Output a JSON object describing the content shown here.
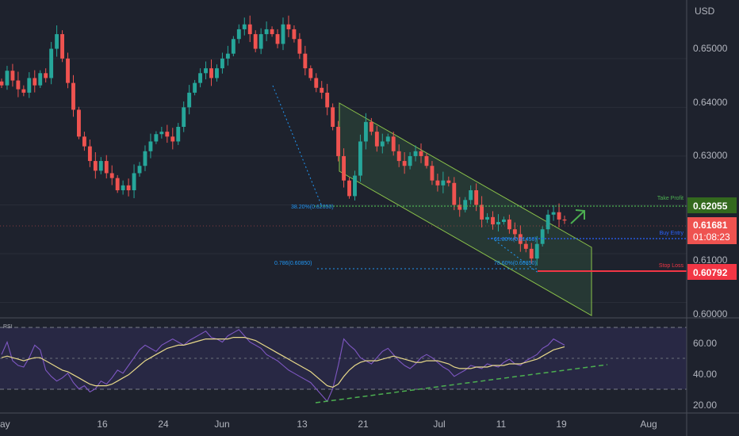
{
  "colors": {
    "background": "#1e222d",
    "grid": "#2a2e39",
    "up": "#26a69a",
    "down": "#ef5350",
    "take_profit": "#4caf50",
    "take_profit_badge": "#33691e",
    "buy_entry": "#2962ff",
    "stop_loss": "#f23645",
    "current_price_badge": "#ef5350",
    "rsi_line": "#7e57c2",
    "rsi_ma": "#e8d98a",
    "rsi_band": "#2a2a4a",
    "channel_fill": "#2d4a3a",
    "channel_line": "#8bc34a",
    "fib": "#2196f3",
    "trendline": "#4caf50"
  },
  "price_axis": {
    "currency": "USD",
    "ticks": [
      "0.65000",
      "0.64000",
      "0.63000",
      "0.61000",
      "0.60000"
    ]
  },
  "rsi_axis": {
    "title": "RSI",
    "ticks": [
      "60.00",
      "40.00",
      "20.00"
    ]
  },
  "time_axis": {
    "labels": [
      "ay",
      "16",
      "24",
      "Jun",
      "13",
      "21",
      "Jul",
      "11",
      "19",
      "Aug"
    ]
  },
  "levels": {
    "take_profit": {
      "label": "Take Profit",
      "price": "0.62055"
    },
    "current": {
      "price": "0.61681",
      "countdown": "01:08:23"
    },
    "buy_entry": {
      "label": "Buy Entry"
    },
    "stop_loss": {
      "label": "Stop Loss",
      "price": "0.60792"
    }
  },
  "fib_labels": {
    "fib_382": "38.20%(0.62050)",
    "fib_786": "0.786(0.60850)",
    "buy_fib": "61.80%(0.61450)",
    "stop_fib": "78.60%(0.60850)"
  },
  "chart_data": [
    {
      "type": "candlestick",
      "title": "",
      "ylabel": "USD",
      "ylim": [
        0.597,
        0.662
      ],
      "x_tick_labels": [
        "ay",
        "16",
        "24",
        "Jun",
        "13",
        "21",
        "Jul",
        "11",
        "19",
        "Aug"
      ],
      "close": [
        0.6445,
        0.6475,
        0.6455,
        0.6437,
        0.643,
        0.646,
        0.6445,
        0.647,
        0.646,
        0.652,
        0.655,
        0.65,
        0.645,
        0.6395,
        0.634,
        0.632,
        0.629,
        0.627,
        0.629,
        0.6265,
        0.6255,
        0.623,
        0.624,
        0.623,
        0.6265,
        0.628,
        0.631,
        0.633,
        0.6345,
        0.635,
        0.634,
        0.633,
        0.636,
        0.64,
        0.643,
        0.645,
        0.647,
        0.648,
        0.646,
        0.648,
        0.65,
        0.651,
        0.654,
        0.656,
        0.657,
        0.655,
        0.652,
        0.655,
        0.656,
        0.655,
        0.653,
        0.657,
        0.656,
        0.654,
        0.651,
        0.648,
        0.646,
        0.644,
        0.643,
        0.64,
        0.636,
        0.63,
        0.625,
        0.6218,
        0.626,
        0.633,
        0.637,
        0.635,
        0.632,
        0.633,
        0.634,
        0.631,
        0.629,
        0.628,
        0.63,
        0.631,
        0.63,
        0.628,
        0.625,
        0.624,
        0.625,
        0.6245,
        0.62,
        0.619,
        0.621,
        0.623,
        0.62,
        0.617,
        0.6175,
        0.616,
        0.6165,
        0.617,
        0.615,
        0.614,
        0.612,
        0.611,
        0.609,
        0.612,
        0.615,
        0.618,
        0.6185,
        0.617,
        0.6168
      ]
    },
    {
      "type": "line",
      "title": "RSI",
      "ylim": [
        15,
        75
      ],
      "series": [
        {
          "values": [
            52,
            60,
            48,
            45,
            44,
            50,
            58,
            55,
            42,
            38,
            35,
            37,
            40,
            34,
            30,
            32,
            28,
            30,
            35,
            33,
            37,
            42,
            40,
            45,
            50,
            55,
            58,
            56,
            54,
            58,
            60,
            62,
            60,
            58,
            61,
            63,
            65,
            67,
            63,
            62,
            60,
            64,
            66,
            68,
            64,
            60,
            58,
            56,
            52,
            50,
            48,
            45,
            42,
            40,
            38,
            36,
            34,
            30,
            26,
            22,
            30,
            45,
            62,
            58,
            55,
            50,
            48,
            46,
            50,
            54,
            56,
            52,
            48,
            45,
            43,
            46,
            50,
            52,
            50,
            47,
            44,
            42,
            38,
            40,
            42,
            45,
            44,
            43,
            46,
            45,
            44,
            47,
            49,
            46,
            45,
            48,
            50,
            52,
            56,
            58,
            62,
            60,
            58
          ]
        },
        {
          "values": [
            50,
            51,
            50,
            49,
            48,
            49,
            50,
            50,
            48,
            46,
            44,
            42,
            41,
            39,
            37,
            35,
            33,
            32,
            32,
            32,
            33,
            35,
            37,
            39,
            42,
            45,
            48,
            50,
            52,
            54,
            56,
            57,
            58,
            58,
            59,
            60,
            61,
            62,
            62,
            62,
            62,
            62,
            63,
            63,
            63,
            62,
            61,
            59,
            57,
            55,
            53,
            51,
            49,
            47,
            45,
            43,
            41,
            38,
            35,
            32,
            31,
            33,
            38,
            42,
            45,
            47,
            48,
            48,
            48,
            49,
            50,
            51,
            50,
            49,
            48,
            47,
            47,
            48,
            48,
            48,
            47,
            46,
            44,
            43,
            43,
            43,
            44,
            44,
            44,
            45,
            45,
            45,
            46,
            46,
            46,
            47,
            48,
            49,
            51,
            53,
            55,
            56,
            57
          ]
        }
      ],
      "y_tick_labels": [
        "60.00",
        "40.00",
        "20.00"
      ]
    }
  ]
}
